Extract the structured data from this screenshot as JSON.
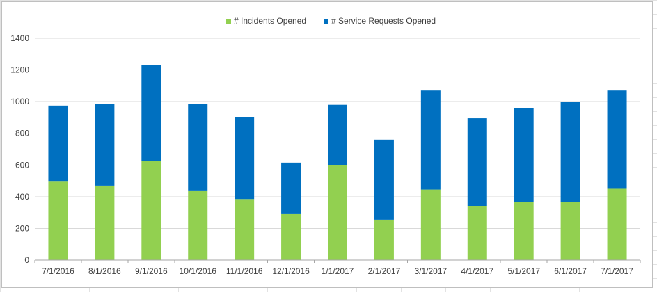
{
  "chart_data": {
    "type": "bar",
    "stacked": true,
    "title": "",
    "xlabel": "",
    "ylabel": "",
    "categories": [
      "7/1/2016",
      "8/1/2016",
      "9/1/2016",
      "10/1/2016",
      "11/1/2016",
      "12/1/2016",
      "1/1/2017",
      "2/1/2017",
      "3/1/2017",
      "4/1/2017",
      "5/1/2017",
      "6/1/2017",
      "7/1/2017"
    ],
    "series": [
      {
        "name": "# Incidents Opened",
        "color": "#92d050",
        "values": [
          495,
          470,
          625,
          435,
          385,
          290,
          600,
          255,
          445,
          340,
          365,
          365,
          450
        ]
      },
      {
        "name": "# Service Requests Opened",
        "color": "#0070c0",
        "values": [
          480,
          515,
          605,
          550,
          515,
          325,
          380,
          505,
          625,
          555,
          595,
          635,
          620
        ]
      }
    ],
    "ylim": [
      0,
      1400
    ],
    "yticks": [
      0,
      200,
      400,
      600,
      800,
      1000,
      1200,
      1400
    ],
    "grid": true,
    "legend_position": "top"
  }
}
